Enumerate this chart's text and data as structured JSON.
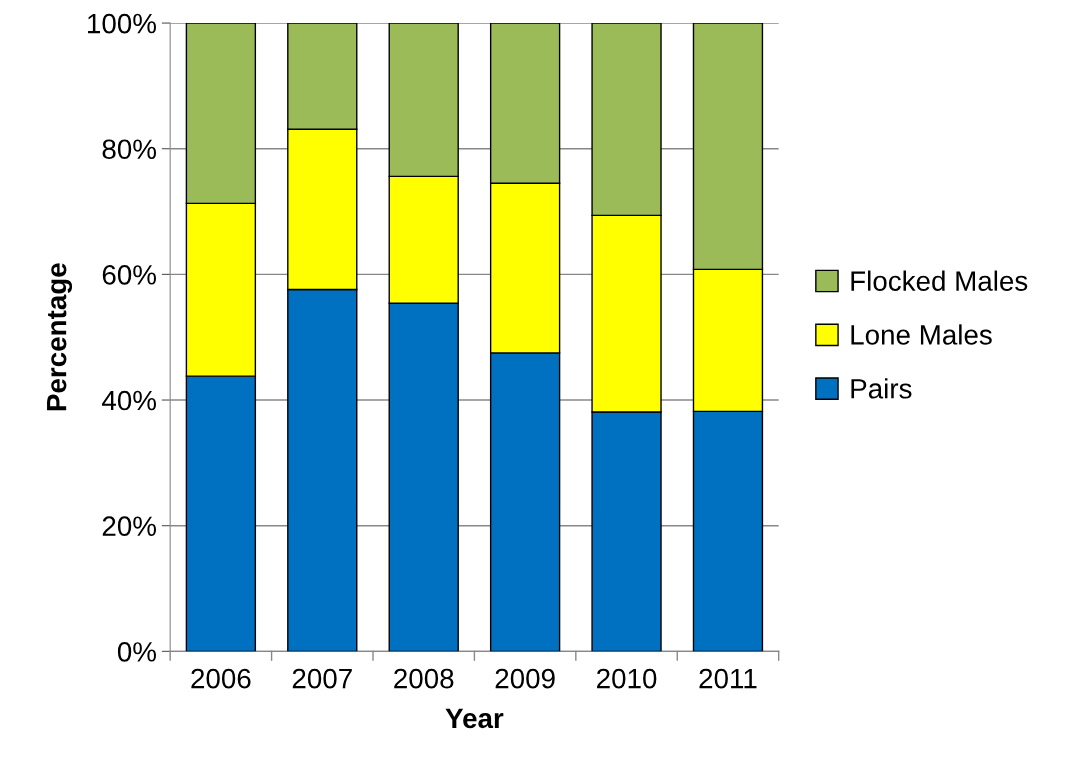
{
  "chart_data": {
    "type": "bar",
    "stacked": true,
    "xlabel": "Year",
    "ylabel": "Percentage",
    "categories": [
      "2006",
      "2007",
      "2008",
      "2009",
      "2010",
      "2011"
    ],
    "series": [
      {
        "name": "Pairs",
        "color": "#0070c0",
        "values": [
          43.8,
          57.6,
          55.4,
          47.5,
          38.1,
          38.2
        ]
      },
      {
        "name": "Lone Males",
        "color": "#ffff00",
        "values": [
          27.5,
          25.5,
          20.2,
          27.0,
          31.3,
          22.6
        ]
      },
      {
        "name": "Flocked Males",
        "color": "#9bbb59",
        "values": [
          28.7,
          16.9,
          24.4,
          25.5,
          30.6,
          39.2
        ]
      }
    ],
    "ylim": [
      0,
      100
    ],
    "yticks": [
      {
        "value": 0,
        "label": "0%"
      },
      {
        "value": 20,
        "label": "20%"
      },
      {
        "value": 40,
        "label": "40%"
      },
      {
        "value": 60,
        "label": "60%"
      },
      {
        "value": 80,
        "label": "80%"
      },
      {
        "value": 100,
        "label": "100%"
      }
    ],
    "grid": "y",
    "legend": "right"
  }
}
